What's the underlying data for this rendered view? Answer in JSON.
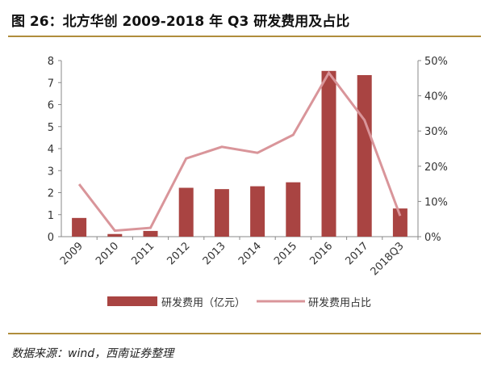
{
  "title": "图 26：北方华创 2009-2018 年 Q3 研发费用及占比",
  "source": "数据来源：wind，西南证券整理",
  "chart_data": {
    "type": "bar+line",
    "categories": [
      "2009",
      "2010",
      "2011",
      "2012",
      "2013",
      "2014",
      "2015",
      "2016",
      "2017",
      "2018Q3"
    ],
    "series": [
      {
        "name": "研发费用（亿元）",
        "type": "bar",
        "axis": "left",
        "color": "#a94442",
        "values": [
          0.85,
          0.12,
          0.26,
          2.22,
          2.16,
          2.29,
          2.47,
          7.53,
          7.34,
          1.28
        ]
      },
      {
        "name": "研发费用占比",
        "type": "line",
        "axis": "right",
        "color": "#d9959a",
        "values": [
          14.9,
          1.7,
          2.5,
          22.2,
          25.5,
          23.8,
          28.9,
          46.5,
          33.1,
          5.9
        ]
      }
    ],
    "ylim_left": [
      0,
      8
    ],
    "yticks_left": [
      "0",
      "1",
      "2",
      "3",
      "4",
      "5",
      "6",
      "7",
      "8"
    ],
    "ylim_right": [
      0,
      50
    ],
    "yticks_right": [
      "0%",
      "10%",
      "20%",
      "30%",
      "40%",
      "50%"
    ],
    "grid": false,
    "legend": "bottom"
  }
}
